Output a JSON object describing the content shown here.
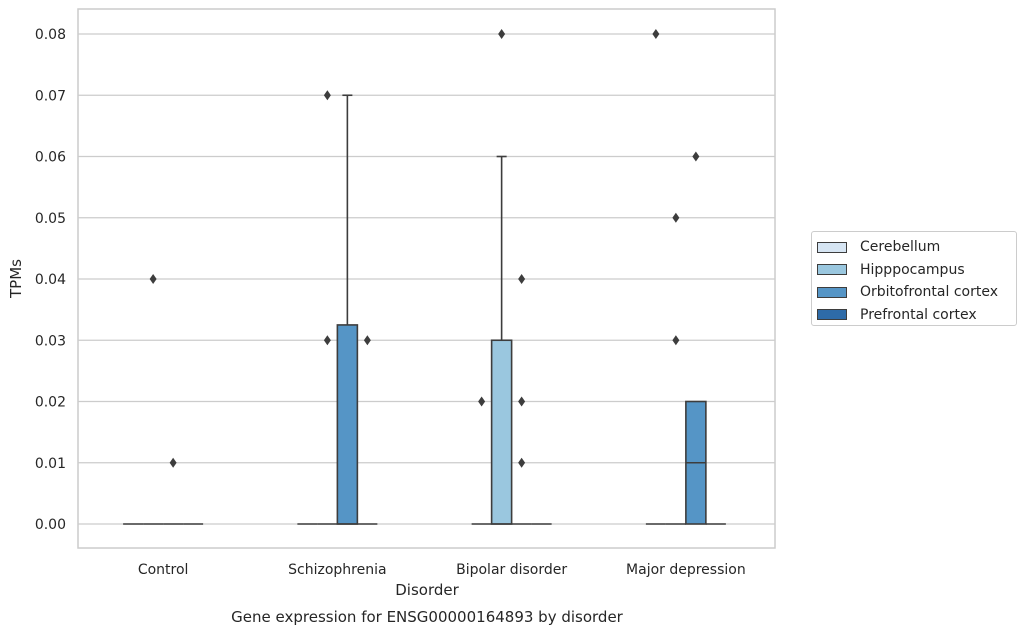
{
  "chart_data": {
    "type": "box",
    "title": "Gene expression for ENSG00000164893 by disorder",
    "xlabel": "Disorder",
    "ylabel": "TPMs",
    "ylim": [
      -0.004,
      0.084
    ],
    "yticks": [
      "0.00",
      "0.01",
      "0.02",
      "0.03",
      "0.04",
      "0.05",
      "0.06",
      "0.07",
      "0.08"
    ],
    "grid": "horizontal",
    "legend_position": "right",
    "categories": [
      "Control",
      "Schizophrenia",
      "Bipolar disorder",
      "Major depression"
    ],
    "series": [
      {
        "name": "Cerebellum",
        "color": "#d6e5f3"
      },
      {
        "name": "Hipppocampus",
        "color": "#9ac7df"
      },
      {
        "name": "Orbitofrontal cortex",
        "color": "#5595c6"
      },
      {
        "name": "Prefrontal cortex",
        "color": "#2e6ba8"
      }
    ],
    "boxes": [
      {
        "category": "Control",
        "series": "Cerebellum",
        "q1": 0,
        "median": 0,
        "q3": 0,
        "whisker_low": 0,
        "whisker_high": 0,
        "outliers": []
      },
      {
        "category": "Control",
        "series": "Hipppocampus",
        "q1": 0,
        "median": 0,
        "q3": 0,
        "whisker_low": 0,
        "whisker_high": 0,
        "outliers": [
          0.04
        ]
      },
      {
        "category": "Control",
        "series": "Orbitofrontal cortex",
        "q1": 0,
        "median": 0,
        "q3": 0,
        "whisker_low": 0,
        "whisker_high": 0,
        "outliers": [
          0.01
        ]
      },
      {
        "category": "Control",
        "series": "Prefrontal cortex",
        "q1": 0,
        "median": 0,
        "q3": 0,
        "whisker_low": 0,
        "whisker_high": 0,
        "outliers": []
      },
      {
        "category": "Schizophrenia",
        "series": "Cerebellum",
        "q1": 0,
        "median": 0,
        "q3": 0,
        "whisker_low": 0,
        "whisker_high": 0,
        "outliers": []
      },
      {
        "category": "Schizophrenia",
        "series": "Hipppocampus",
        "q1": 0,
        "median": 0,
        "q3": 0,
        "whisker_low": 0,
        "whisker_high": 0,
        "outliers": [
          0.07,
          0.03
        ]
      },
      {
        "category": "Schizophrenia",
        "series": "Orbitofrontal cortex",
        "q1": 0,
        "median": 0,
        "q3": 0.0325,
        "whisker_low": 0,
        "whisker_high": 0.07,
        "outliers": []
      },
      {
        "category": "Schizophrenia",
        "series": "Prefrontal cortex",
        "q1": 0,
        "median": 0,
        "q3": 0,
        "whisker_low": 0,
        "whisker_high": 0,
        "outliers": [
          0.03
        ]
      },
      {
        "category": "Bipolar disorder",
        "series": "Cerebellum",
        "q1": 0,
        "median": 0,
        "q3": 0,
        "whisker_low": 0,
        "whisker_high": 0,
        "outliers": [
          0.02
        ]
      },
      {
        "category": "Bipolar disorder",
        "series": "Hipppocampus",
        "q1": 0,
        "median": 0,
        "q3": 0.03,
        "whisker_low": 0,
        "whisker_high": 0.06,
        "outliers": [
          0.08
        ]
      },
      {
        "category": "Bipolar disorder",
        "series": "Orbitofrontal cortex",
        "q1": 0,
        "median": 0,
        "q3": 0,
        "whisker_low": 0,
        "whisker_high": 0,
        "outliers": [
          0.04,
          0.02,
          0.01
        ]
      },
      {
        "category": "Bipolar disorder",
        "series": "Prefrontal cortex",
        "q1": 0,
        "median": 0,
        "q3": 0,
        "whisker_low": 0,
        "whisker_high": 0,
        "outliers": []
      },
      {
        "category": "Major depression",
        "series": "Cerebellum",
        "q1": 0,
        "median": 0,
        "q3": 0,
        "whisker_low": 0,
        "whisker_high": 0,
        "outliers": [
          0.08
        ]
      },
      {
        "category": "Major depression",
        "series": "Hipppocampus",
        "q1": 0,
        "median": 0,
        "q3": 0,
        "whisker_low": 0,
        "whisker_high": 0,
        "outliers": [
          0.05,
          0.03
        ]
      },
      {
        "category": "Major depression",
        "series": "Orbitofrontal cortex",
        "q1": 0,
        "median": 0.01,
        "q3": 0.02,
        "whisker_low": 0,
        "whisker_high": 0.02,
        "outliers": [
          0.06
        ]
      },
      {
        "category": "Major depression",
        "series": "Prefrontal cortex",
        "q1": 0,
        "median": 0,
        "q3": 0,
        "whisker_low": 0,
        "whisker_high": 0,
        "outliers": []
      }
    ]
  }
}
